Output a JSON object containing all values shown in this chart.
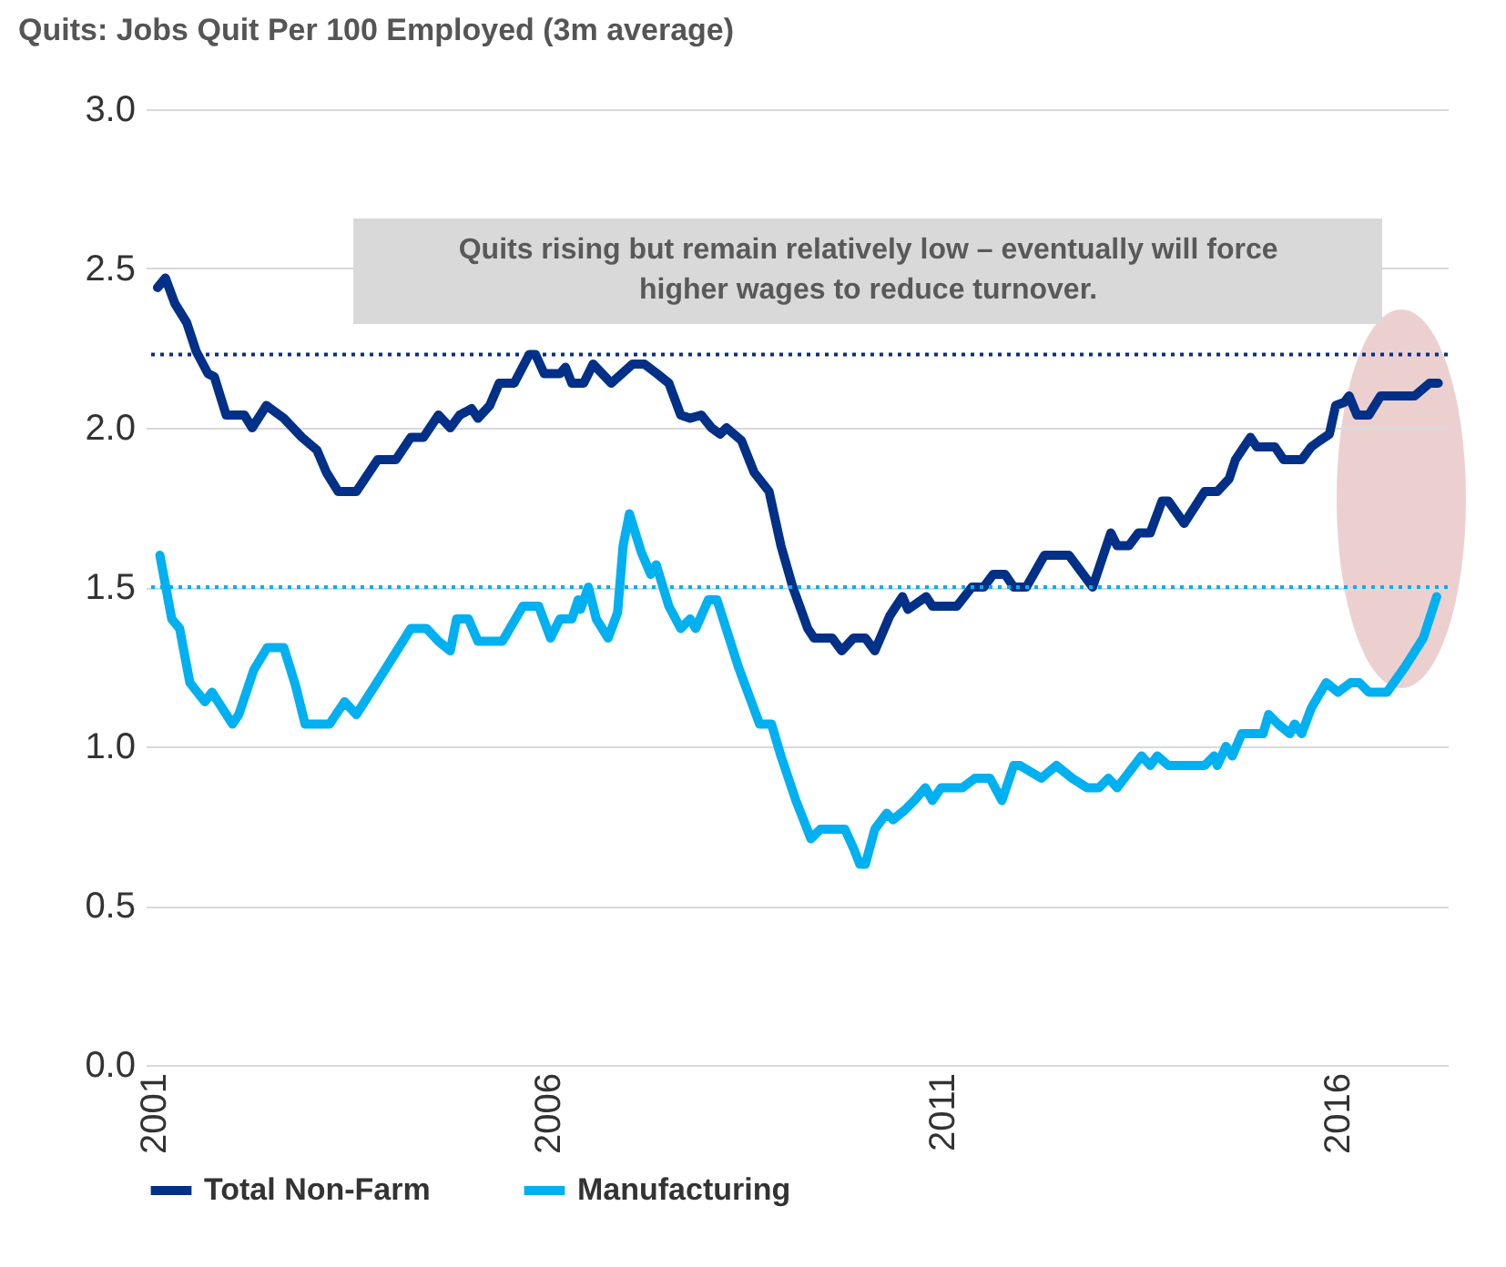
{
  "chart_data": {
    "type": "line",
    "title": "Quits:  Jobs Quit Per 100 Employed (3m average)",
    "annotations": [
      "Quits rising but remain relatively low – eventually will force higher wages to reduce turnover."
    ],
    "xlim": [
      2000.9,
      2017.4
    ],
    "xticks": [
      2001,
      2006,
      2011,
      2016
    ],
    "ylim": [
      0,
      3
    ],
    "yticks": [
      {
        "value": 0,
        "label": "0.0"
      },
      {
        "value": 0.5,
        "label": "0.5"
      },
      {
        "value": 1,
        "label": "1.0"
      },
      {
        "value": 1.5,
        "label": "1.5"
      },
      {
        "value": 2,
        "label": "2.0"
      },
      {
        "value": 2.5,
        "label": "2.5"
      },
      {
        "value": 3,
        "label": "3.0"
      }
    ],
    "grid": "y",
    "legend": "bottom",
    "ref_lines": [
      {
        "axis": "y",
        "value": 2.23,
        "color": "#003087",
        "line_style": "dotted"
      },
      {
        "axis": "y",
        "value": 1.5,
        "color": "#00b0f0",
        "line_style": "dotted"
      }
    ],
    "series": [
      {
        "name": "Total Non-Farm",
        "color": "#003087",
        "x": [
          2001.05,
          2001.15,
          2001.27,
          2001.42,
          2001.54,
          2001.69,
          2001.77,
          2001.92,
          2002.15,
          2002.25,
          2002.43,
          2002.65,
          2002.88,
          2003.07,
          2003.19,
          2003.34,
          2003.57,
          2003.84,
          2004.07,
          2004.26,
          2004.42,
          2004.61,
          2004.76,
          2004.88,
          2005.03,
          2005.11,
          2005.26,
          2005.38,
          2005.57,
          2005.76,
          2005.84,
          2005.95,
          2006.15,
          2006.22,
          2006.3,
          2006.45,
          2006.57,
          2006.8,
          2007.07,
          2007.22,
          2007.38,
          2007.53,
          2007.68,
          2007.8,
          2007.94,
          2008.07,
          2008.18,
          2008.26,
          2008.45,
          2008.61,
          2008.8,
          2008.95,
          2009.1,
          2009.29,
          2009.37,
          2009.6,
          2009.72,
          2009.87,
          2010.02,
          2010.14,
          2010.33,
          2010.49,
          2010.56,
          2010.79,
          2010.87,
          2011.18,
          2011.37,
          2011.52,
          2011.64,
          2011.79,
          2011.9,
          2012.06,
          2012.29,
          2012.6,
          2012.9,
          2013.13,
          2013.21,
          2013.36,
          2013.48,
          2013.63,
          2013.78,
          2013.86,
          2014.06,
          2014.32,
          2014.48,
          2014.63,
          2014.71,
          2014.9,
          2014.98,
          2015.21,
          2015.32,
          2015.55,
          2015.67,
          2015.78,
          2015.9,
          2015.98,
          2016.09,
          2016.15,
          2016.25,
          2016.4,
          2016.55,
          2016.98,
          2017.17,
          2017.28
        ],
        "values": [
          2.44,
          2.47,
          2.39,
          2.33,
          2.24,
          2.17,
          2.16,
          2.04,
          2.04,
          2.0,
          2.07,
          2.03,
          1.97,
          1.93,
          1.86,
          1.8,
          1.8,
          1.9,
          1.9,
          1.97,
          1.97,
          2.04,
          2.0,
          2.04,
          2.06,
          2.03,
          2.07,
          2.14,
          2.14,
          2.23,
          2.23,
          2.17,
          2.17,
          2.19,
          2.14,
          2.14,
          2.2,
          2.14,
          2.2,
          2.2,
          2.17,
          2.14,
          2.04,
          2.03,
          2.04,
          2.0,
          1.98,
          2.0,
          1.96,
          1.86,
          1.8,
          1.63,
          1.5,
          1.37,
          1.34,
          1.34,
          1.3,
          1.34,
          1.34,
          1.3,
          1.41,
          1.47,
          1.43,
          1.47,
          1.44,
          1.44,
          1.5,
          1.5,
          1.54,
          1.54,
          1.5,
          1.5,
          1.6,
          1.6,
          1.5,
          1.67,
          1.63,
          1.63,
          1.67,
          1.67,
          1.77,
          1.77,
          1.7,
          1.8,
          1.8,
          1.84,
          1.9,
          1.97,
          1.94,
          1.94,
          1.9,
          1.9,
          1.94,
          1.96,
          1.98,
          2.07,
          2.08,
          2.1,
          2.04,
          2.04,
          2.1,
          2.1,
          2.14,
          2.14
        ]
      },
      {
        "name": "Manufacturing",
        "color": "#00b0f0",
        "x": [
          2001.08,
          2001.23,
          2001.33,
          2001.46,
          2001.65,
          2001.74,
          2002.0,
          2002.08,
          2002.27,
          2002.44,
          2002.65,
          2002.8,
          2002.92,
          2003.23,
          2003.42,
          2003.57,
          2003.88,
          2004.26,
          2004.46,
          2004.61,
          2004.76,
          2004.84,
          2004.99,
          2005.11,
          2005.42,
          2005.68,
          2005.88,
          2006.03,
          2006.15,
          2006.3,
          2006.38,
          2006.41,
          2006.51,
          2006.61,
          2006.76,
          2006.88,
          2006.95,
          2007.03,
          2007.18,
          2007.3,
          2007.37,
          2007.53,
          2007.68,
          2007.8,
          2007.87,
          2008.03,
          2008.14,
          2008.41,
          2008.68,
          2008.83,
          2008.95,
          2009.14,
          2009.33,
          2009.45,
          2009.76,
          2009.87,
          2009.95,
          2010.02,
          2010.14,
          2010.29,
          2010.37,
          2010.52,
          2010.64,
          2010.78,
          2010.87,
          2010.98,
          2011.25,
          2011.41,
          2011.6,
          2011.75,
          2011.9,
          2011.98,
          2012.25,
          2012.44,
          2012.64,
          2012.83,
          2012.98,
          2013.1,
          2013.21,
          2013.52,
          2013.63,
          2013.72,
          2013.86,
          2014.32,
          2014.44,
          2014.48,
          2014.59,
          2014.67,
          2014.79,
          2015.06,
          2015.13,
          2015.25,
          2015.4,
          2015.46,
          2015.55,
          2015.67,
          2015.86,
          2016.01,
          2016.17,
          2016.28,
          2016.4,
          2016.63,
          2016.86,
          2017.09,
          2017.26
        ],
        "values": [
          1.6,
          1.4,
          1.37,
          1.2,
          1.14,
          1.17,
          1.07,
          1.1,
          1.24,
          1.31,
          1.31,
          1.19,
          1.07,
          1.07,
          1.14,
          1.1,
          1.22,
          1.37,
          1.37,
          1.33,
          1.3,
          1.4,
          1.4,
          1.33,
          1.33,
          1.44,
          1.44,
          1.34,
          1.4,
          1.4,
          1.46,
          1.43,
          1.5,
          1.4,
          1.34,
          1.42,
          1.63,
          1.73,
          1.61,
          1.54,
          1.57,
          1.44,
          1.37,
          1.4,
          1.37,
          1.46,
          1.46,
          1.25,
          1.07,
          1.07,
          0.97,
          0.83,
          0.71,
          0.74,
          0.74,
          0.68,
          0.63,
          0.63,
          0.74,
          0.79,
          0.77,
          0.8,
          0.83,
          0.87,
          0.83,
          0.87,
          0.87,
          0.9,
          0.9,
          0.83,
          0.94,
          0.94,
          0.9,
          0.94,
          0.9,
          0.87,
          0.87,
          0.9,
          0.87,
          0.97,
          0.94,
          0.97,
          0.94,
          0.94,
          0.97,
          0.94,
          1.0,
          0.97,
          1.04,
          1.04,
          1.1,
          1.07,
          1.04,
          1.07,
          1.04,
          1.12,
          1.2,
          1.17,
          1.2,
          1.2,
          1.17,
          1.17,
          1.25,
          1.34,
          1.47
        ]
      }
    ]
  }
}
